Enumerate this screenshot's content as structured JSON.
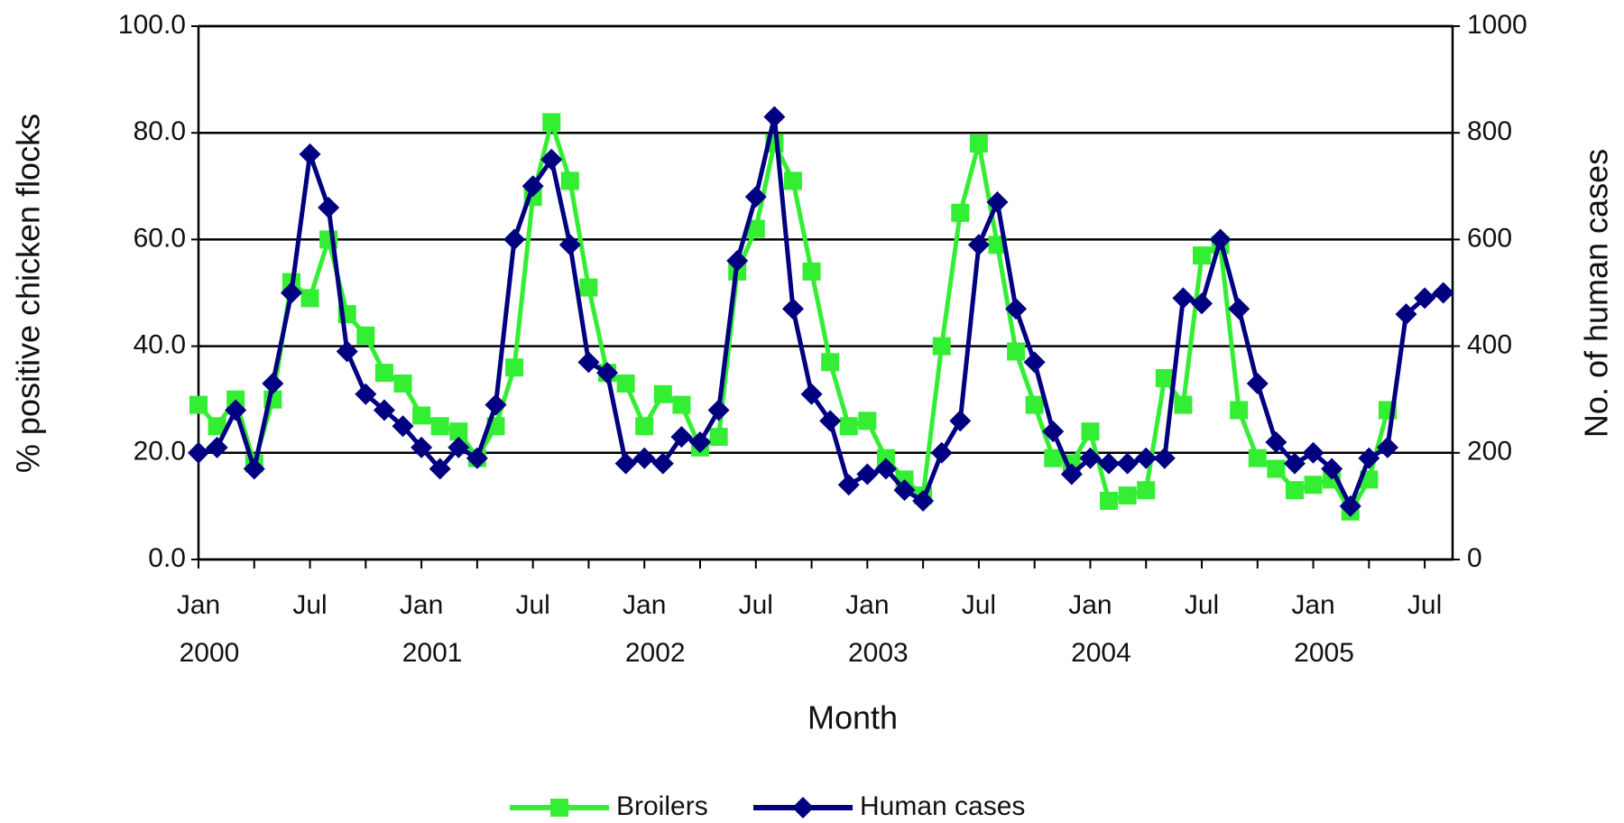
{
  "chart_data": {
    "type": "line",
    "x_label": "Month",
    "y_label": "% positive chicken flocks",
    "y2_label": "No. of human cases",
    "categories": [
      "Jan",
      null,
      null,
      null,
      null,
      null,
      "Jul",
      null,
      null,
      null,
      null,
      null,
      "Jan",
      null,
      null,
      null,
      null,
      null,
      "Jul",
      null,
      null,
      null,
      null,
      null,
      "Jan",
      null,
      null,
      null,
      null,
      null,
      "Jul",
      null,
      null,
      null,
      null,
      null,
      "Jan",
      null,
      null,
      null,
      null,
      null,
      "Jul",
      null,
      null,
      null,
      null,
      null,
      "Jan",
      null,
      null,
      null,
      null,
      null,
      "Jul",
      null,
      null,
      null,
      null,
      null,
      "Jan",
      null,
      null,
      null,
      null,
      null,
      "Jul",
      null
    ],
    "years": [
      "2000",
      "2001",
      "2002",
      "2003",
      "2004",
      "2005"
    ],
    "series": [
      {
        "name": "Broilers",
        "color": "#33ee33",
        "marker": "square",
        "values": [
          29,
          25,
          30,
          18,
          30,
          52,
          49,
          60,
          46,
          42,
          35,
          33,
          27,
          25,
          24,
          19,
          25,
          36,
          68,
          82,
          71,
          51,
          35,
          33,
          25,
          31,
          29,
          21,
          23,
          54,
          62,
          78,
          71,
          54,
          37,
          25,
          26,
          19,
          15,
          12,
          40,
          65,
          78,
          59,
          39,
          29,
          19,
          18,
          24,
          11,
          12,
          13,
          34,
          29,
          57,
          59,
          28,
          19,
          17,
          13,
          14,
          15,
          9,
          15,
          28,
          null,
          null,
          null
        ]
      },
      {
        "name": "Human cases",
        "color": "#000080",
        "marker": "diamond",
        "axis": "y2",
        "values": [
          200,
          210,
          280,
          170,
          330,
          500,
          760,
          660,
          390,
          310,
          280,
          250,
          210,
          170,
          210,
          190,
          290,
          600,
          700,
          750,
          590,
          370,
          350,
          180,
          190,
          180,
          230,
          220,
          280,
          560,
          680,
          830,
          470,
          310,
          260,
          140,
          160,
          170,
          130,
          110,
          200,
          260,
          590,
          670,
          470,
          370,
          240,
          160,
          190,
          180,
          180,
          190,
          190,
          490,
          480,
          600,
          470,
          330,
          220,
          180,
          200,
          170,
          100,
          190,
          210,
          460,
          490,
          500
        ]
      }
    ],
    "ylim": [
      0,
      100
    ],
    "yticks": [
      {
        "value": 0,
        "label": "0.0"
      },
      {
        "value": 20,
        "label": "20.0"
      },
      {
        "value": 40,
        "label": "40.0"
      },
      {
        "value": 60,
        "label": "60.0"
      },
      {
        "value": 80,
        "label": "80.0"
      },
      {
        "value": 100,
        "label": "100.0"
      }
    ],
    "y2lim": [
      0,
      1000
    ],
    "y2ticks": [
      0,
      200,
      400,
      600,
      800,
      1000
    ],
    "grid": true,
    "legend": "bottom"
  }
}
